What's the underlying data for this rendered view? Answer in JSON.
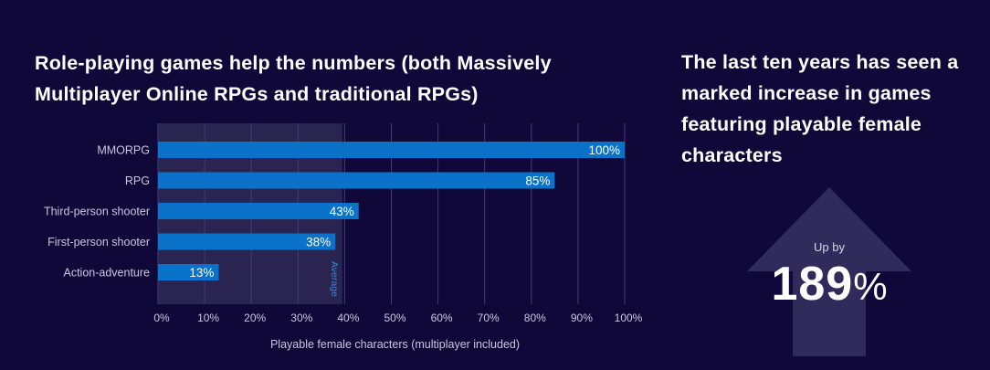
{
  "chart_data": {
    "type": "bar",
    "orientation": "horizontal",
    "title": "Role-playing games help the numbers (both Massively Multiplayer Online RPGs and traditional RPGs)",
    "categories": [
      "MMORPG",
      "RPG",
      "Third-person shooter",
      "First-person shooter",
      "Action-adventure"
    ],
    "values": [
      100,
      85,
      43,
      38,
      13
    ],
    "value_labels": [
      "100%",
      "85%",
      "43%",
      "38%",
      "13%"
    ],
    "xlabel": "Playable female characters (multiplayer included)",
    "xlim": [
      0,
      100
    ],
    "xticks": [
      0,
      10,
      20,
      30,
      40,
      50,
      60,
      70,
      80,
      90,
      100
    ],
    "xtick_labels": [
      "0%",
      "10%",
      "20%",
      "30%",
      "40%",
      "50%",
      "60%",
      "70%",
      "80%",
      "90%",
      "100%"
    ],
    "average_value": 39.5,
    "average_label": "Average",
    "grid": "vertical",
    "colors": {
      "bar": "#0a72c9",
      "average_band": "#2a2550",
      "grid": "#3f3c7e",
      "background": "#11083a"
    }
  },
  "side_panel": {
    "headline": "The last ten years has seen a marked increase in games featuring playable female characters",
    "stat_label": "Up by",
    "stat_number": "189",
    "stat_unit": "%",
    "arrow_color": "#312b5c"
  }
}
